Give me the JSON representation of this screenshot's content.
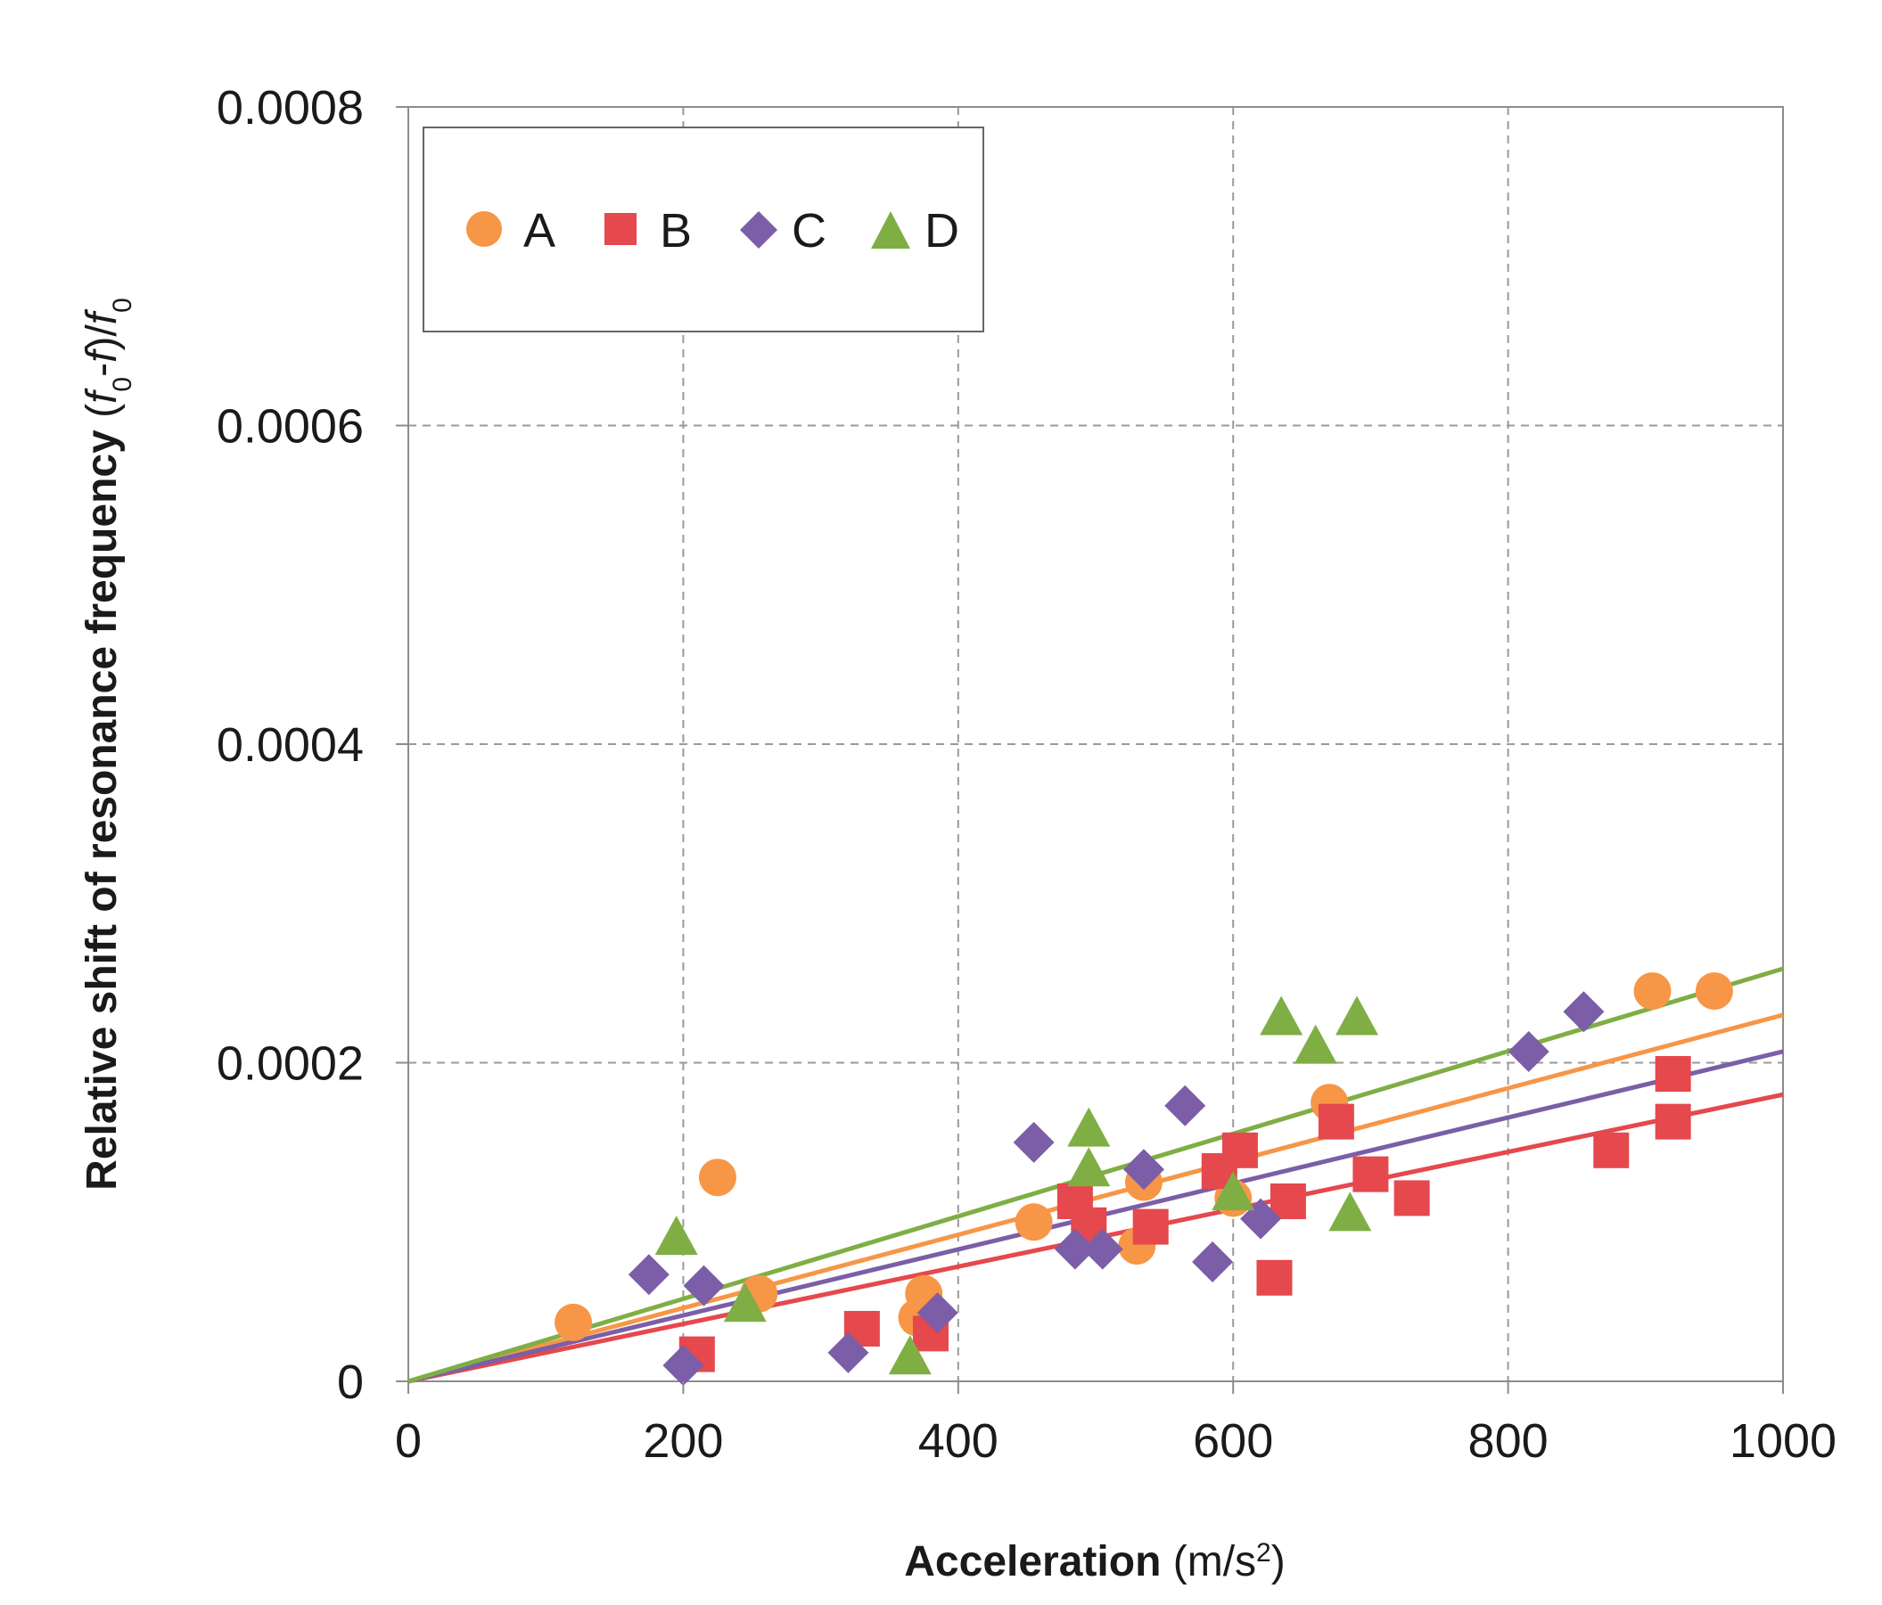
{
  "chart_data": {
    "type": "scatter",
    "xlabel_bold": "Acceleration",
    "xlabel_unit": "(m/s",
    "xlabel_sup": "2",
    "xlabel_close": ")",
    "ylabel_bold": "Relative shift of resonance frequency",
    "ylabel_open": "(",
    "ylabel_f0a": "f",
    "ylabel_sub0a": "0",
    "ylabel_mid": "-",
    "ylabel_f": "f",
    "ylabel_slash": ")/",
    "ylabel_f0b": "f",
    "ylabel_sub0b": "0",
    "xlim": [
      0,
      1000
    ],
    "ylim": [
      0,
      0.0008
    ],
    "x_ticks": [
      0,
      200,
      400,
      600,
      800,
      1000
    ],
    "y_ticks": [
      0,
      0.0002,
      0.0004,
      0.0006,
      0.0008
    ],
    "x_tick_labels": [
      "0",
      "200",
      "400",
      "600",
      "800",
      "1000"
    ],
    "y_tick_labels": [
      "0",
      "0.0002",
      "0.0004",
      "0.0006",
      "0.0008"
    ],
    "grid": true,
    "legend_position": "top-left",
    "series": [
      {
        "name": "A",
        "marker": "circle",
        "color": "#F79646",
        "points": [
          [
            120,
            3.7e-05
          ],
          [
            225,
            0.000128
          ],
          [
            255,
            5.5e-05
          ],
          [
            370,
            4e-05
          ],
          [
            375,
            5.5e-05
          ],
          [
            455,
            0.0001
          ],
          [
            530,
            8.5e-05
          ],
          [
            535,
            0.000125
          ],
          [
            600,
            0.000115
          ],
          [
            670,
            0.000175
          ],
          [
            905,
            0.000245
          ],
          [
            950,
            0.000245
          ]
        ],
        "fit_slope": 2.3e-07
      },
      {
        "name": "B",
        "marker": "square",
        "color": "#E5484D",
        "points": [
          [
            210,
            1.7e-05
          ],
          [
            330,
            3.3e-05
          ],
          [
            380,
            3e-05
          ],
          [
            485,
            0.000113
          ],
          [
            495,
            9.8e-05
          ],
          [
            540,
            9.7e-05
          ],
          [
            590,
            0.000132
          ],
          [
            605,
            0.000145
          ],
          [
            630,
            6.5e-05
          ],
          [
            640,
            0.000113
          ],
          [
            675,
            0.000163
          ],
          [
            700,
            0.00013
          ],
          [
            730,
            0.000115
          ],
          [
            875,
            0.000145
          ],
          [
            920,
            0.000193
          ],
          [
            920,
            0.000163
          ]
        ],
        "fit_slope": 1.8e-07
      },
      {
        "name": "C",
        "marker": "diamond",
        "color": "#7B5EA7",
        "points": [
          [
            175,
            6.7e-05
          ],
          [
            200,
            1e-05
          ],
          [
            215,
            6e-05
          ],
          [
            320,
            1.8e-05
          ],
          [
            385,
            4.3e-05
          ],
          [
            455,
            0.00015
          ],
          [
            485,
            8.3e-05
          ],
          [
            505,
            8.3e-05
          ],
          [
            535,
            0.000133
          ],
          [
            565,
            0.000173
          ],
          [
            585,
            7.5e-05
          ],
          [
            620,
            0.000102
          ],
          [
            815,
            0.000207
          ],
          [
            855,
            0.000232
          ]
        ],
        "fit_slope": 2.07e-07
      },
      {
        "name": "D",
        "marker": "triangle",
        "color": "#7FAE45",
        "points": [
          [
            195,
            9e-05
          ],
          [
            245,
            4.8e-05
          ],
          [
            365,
            1.5e-05
          ],
          [
            495,
            0.000158
          ],
          [
            495,
            0.000133
          ],
          [
            600,
            0.000118
          ],
          [
            635,
            0.000228
          ],
          [
            660,
            0.00021
          ],
          [
            685,
            0.000105
          ],
          [
            690,
            0.000228
          ]
        ],
        "fit_slope": 2.59e-07
      }
    ]
  }
}
